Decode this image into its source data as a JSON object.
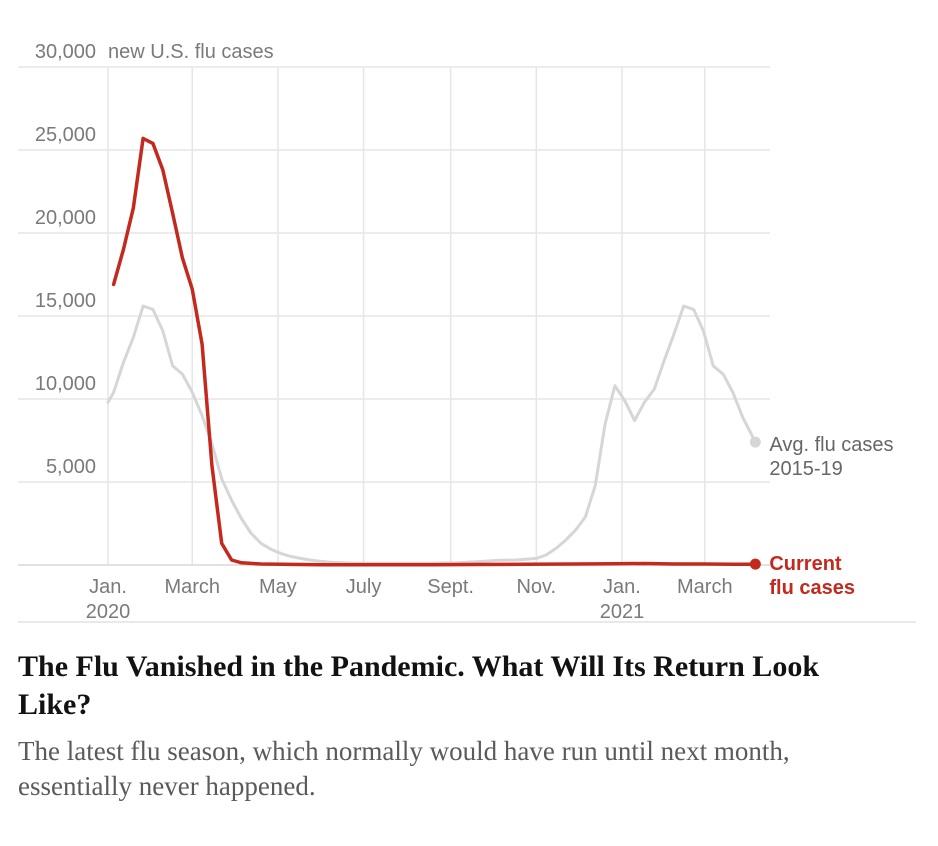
{
  "chart_data": {
    "type": "line",
    "ylabel": "new U.S. flu cases",
    "ylim": [
      0,
      30000
    ],
    "y_ticks": [
      5000,
      10000,
      15000,
      20000,
      25000,
      30000
    ],
    "y_tick_labels": [
      "5,000",
      "10,000",
      "15,000",
      "20,000",
      "25,000",
      "30,000"
    ],
    "xlim": [
      "2020-01-01",
      "2021-04-15"
    ],
    "x_ticks": [
      {
        "date": "2020-01-01",
        "label": "Jan.",
        "year": "2020"
      },
      {
        "date": "2020-03-01",
        "label": "March",
        "year": ""
      },
      {
        "date": "2020-05-01",
        "label": "May",
        "year": ""
      },
      {
        "date": "2020-07-01",
        "label": "July",
        "year": ""
      },
      {
        "date": "2020-09-01",
        "label": "Sept.",
        "year": ""
      },
      {
        "date": "2020-11-01",
        "label": "Nov.",
        "year": ""
      },
      {
        "date": "2021-01-01",
        "label": "Jan.",
        "year": "2021"
      },
      {
        "date": "2021-03-01",
        "label": "March",
        "year": ""
      }
    ],
    "grid": true,
    "series": [
      {
        "name": "Avg. flu cases 2015-19",
        "label_lines": [
          "Avg. flu cases",
          "2015-19"
        ],
        "color": "#d6d6d6",
        "points": [
          [
            "2020-01-01",
            9800
          ],
          [
            "2020-01-05",
            10400
          ],
          [
            "2020-01-12",
            12200
          ],
          [
            "2020-01-19",
            13700
          ],
          [
            "2020-01-26",
            15600
          ],
          [
            "2020-02-02",
            15400
          ],
          [
            "2020-02-09",
            14100
          ],
          [
            "2020-02-16",
            12000
          ],
          [
            "2020-02-23",
            11500
          ],
          [
            "2020-03-01",
            10400
          ],
          [
            "2020-03-08",
            9000
          ],
          [
            "2020-03-15",
            7300
          ],
          [
            "2020-03-22",
            5200
          ],
          [
            "2020-03-29",
            3900
          ],
          [
            "2020-04-05",
            2800
          ],
          [
            "2020-04-12",
            1900
          ],
          [
            "2020-04-19",
            1300
          ],
          [
            "2020-04-26",
            950
          ],
          [
            "2020-05-03",
            700
          ],
          [
            "2020-05-10",
            520
          ],
          [
            "2020-05-17",
            400
          ],
          [
            "2020-05-24",
            300
          ],
          [
            "2020-05-31",
            220
          ],
          [
            "2020-06-07",
            160
          ],
          [
            "2020-06-21",
            120
          ],
          [
            "2020-07-05",
            110
          ],
          [
            "2020-07-26",
            100
          ],
          [
            "2020-08-16",
            100
          ],
          [
            "2020-09-06",
            130
          ],
          [
            "2020-09-20",
            200
          ],
          [
            "2020-10-04",
            280
          ],
          [
            "2020-10-18",
            300
          ],
          [
            "2020-11-01",
            400
          ],
          [
            "2020-11-08",
            600
          ],
          [
            "2020-11-15",
            1000
          ],
          [
            "2020-11-22",
            1500
          ],
          [
            "2020-11-29",
            2100
          ],
          [
            "2020-12-06",
            2900
          ],
          [
            "2020-12-13",
            4800
          ],
          [
            "2020-12-20",
            8500
          ],
          [
            "2020-12-27",
            10800
          ],
          [
            "2021-01-03",
            9900
          ],
          [
            "2021-01-10",
            8700
          ],
          [
            "2021-01-17",
            9800
          ],
          [
            "2021-01-24",
            10600
          ],
          [
            "2021-01-31",
            12300
          ],
          [
            "2021-02-07",
            13900
          ],
          [
            "2021-02-14",
            15600
          ],
          [
            "2021-02-21",
            15400
          ],
          [
            "2021-02-28",
            14100
          ],
          [
            "2021-03-07",
            12000
          ],
          [
            "2021-03-14",
            11500
          ],
          [
            "2021-03-21",
            10400
          ],
          [
            "2021-03-28",
            8900
          ],
          [
            "2021-04-06",
            7400
          ]
        ]
      },
      {
        "name": "Current flu cases",
        "label_lines": [
          "Current",
          "flu cases"
        ],
        "color": "#c32a1f",
        "points": [
          [
            "2020-01-05",
            16900
          ],
          [
            "2020-01-12",
            19000
          ],
          [
            "2020-01-19",
            21500
          ],
          [
            "2020-01-26",
            25700
          ],
          [
            "2020-02-02",
            25400
          ],
          [
            "2020-02-09",
            23800
          ],
          [
            "2020-02-16",
            21200
          ],
          [
            "2020-02-23",
            18500
          ],
          [
            "2020-03-01",
            16600
          ],
          [
            "2020-03-08",
            13300
          ],
          [
            "2020-03-15",
            6000
          ],
          [
            "2020-03-22",
            1300
          ],
          [
            "2020-03-29",
            300
          ],
          [
            "2020-04-05",
            130
          ],
          [
            "2020-04-19",
            60
          ],
          [
            "2020-05-03",
            40
          ],
          [
            "2020-05-31",
            20
          ],
          [
            "2020-07-05",
            20
          ],
          [
            "2020-08-16",
            20
          ],
          [
            "2020-09-20",
            30
          ],
          [
            "2020-10-25",
            40
          ],
          [
            "2020-11-29",
            60
          ],
          [
            "2020-12-27",
            80
          ],
          [
            "2021-01-17",
            90
          ],
          [
            "2021-02-07",
            60
          ],
          [
            "2021-02-28",
            60
          ],
          [
            "2021-03-21",
            50
          ],
          [
            "2021-04-06",
            50
          ]
        ]
      }
    ]
  },
  "headline": "The Flu Vanished in the Pandemic. What Will Its Return Look Like?",
  "summary": "The latest flu season, which normally would have run until next month, essentially never happened."
}
